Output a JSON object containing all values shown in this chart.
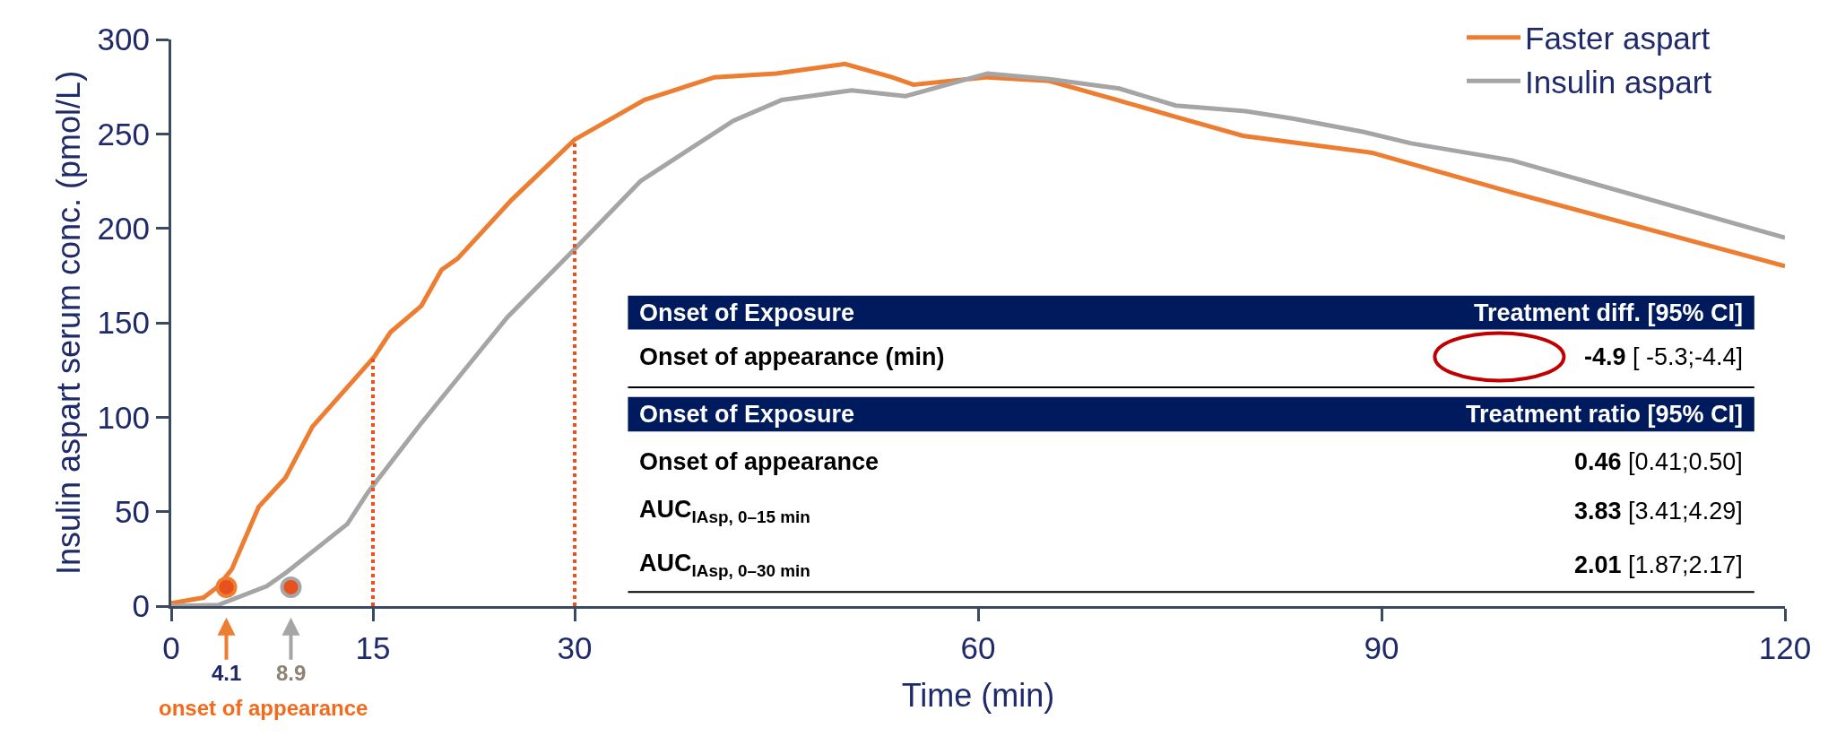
{
  "chart_data": {
    "type": "line",
    "xlabel": "Time (min)",
    "ylabel": "Insulin aspart serum conc. (pmol/L)",
    "xlim": [
      0,
      120
    ],
    "xticks": [
      0,
      15,
      30,
      60,
      90,
      120
    ],
    "ylim": [
      0,
      300
    ],
    "yticks": [
      0,
      50,
      100,
      150,
      200,
      250,
      300
    ],
    "legend": "top right",
    "marker": "none",
    "line_style": "solid",
    "series": [
      {
        "name": "Faster aspart",
        "color": "#ed7d31",
        "x": [
          0,
          2.4,
          3.5,
          4.5,
          6.5,
          8.5,
          10.5,
          15.1,
          16.3,
          18.6,
          20.1,
          21.3,
          25.3,
          30,
          35.2,
          40.4,
          45,
          50.1,
          53.6,
          55.2,
          60.7,
          65.3,
          70.3,
          74.7,
          79.7,
          89.3,
          99.7,
          120
        ],
        "values": [
          1.5,
          4.5,
          10.5,
          19.5,
          52.5,
          68,
          95,
          132,
          145,
          159,
          178,
          184,
          215,
          247,
          268,
          280,
          282,
          287,
          280,
          276,
          280,
          278,
          268,
          259,
          249,
          240,
          219,
          180
        ]
      },
      {
        "name": "Insulin aspart",
        "color": "#a5a5a5",
        "x": [
          0,
          3.5,
          7.1,
          8.6,
          13.1,
          14.6,
          18.5,
          25,
          30,
          34.9,
          41.8,
          45.4,
          50.6,
          54.6,
          60.7,
          65.3,
          70.5,
          74.7,
          79.9,
          83.5,
          88.7,
          92.2,
          99.7,
          120
        ],
        "values": [
          0,
          0.6,
          10.5,
          18,
          43.5,
          60,
          96,
          153,
          189,
          225,
          257,
          268,
          273,
          270,
          282,
          279,
          274,
          265,
          262,
          258,
          251,
          245,
          236,
          195
        ]
      },
      {
        "type": "scatter",
        "marker": "circle",
        "color": "#e8501e",
        "x": [
          4.1,
          8.9
        ],
        "values": [
          10,
          10
        ]
      }
    ],
    "ref_lines": [
      {
        "axis": "x",
        "value": 15,
        "color": "#e8501e",
        "line_style": "dotted"
      },
      {
        "axis": "x",
        "value": 30,
        "color": "#e8501e",
        "line_style": "dotted"
      }
    ],
    "annotations": [
      "Onset of Exposure",
      "Treatment diff. [95% CI]",
      "Onset of appearance (min)",
      "-4.9 [ -5.3;-4.4]",
      "Onset of Exposure",
      "Treatment ratio [95% CI]",
      "Onset of appearance",
      "0.46 [0.41;0.50]",
      "AUC$_{IAsp, 0–15 min}$",
      "3.83 [3.41;4.29]",
      "AUC$_{IAsp, 0–30 min}$",
      "2.01 [1.87;2.17]",
      "onset of appearance",
      "4.1",
      "8.9"
    ]
  }
}
